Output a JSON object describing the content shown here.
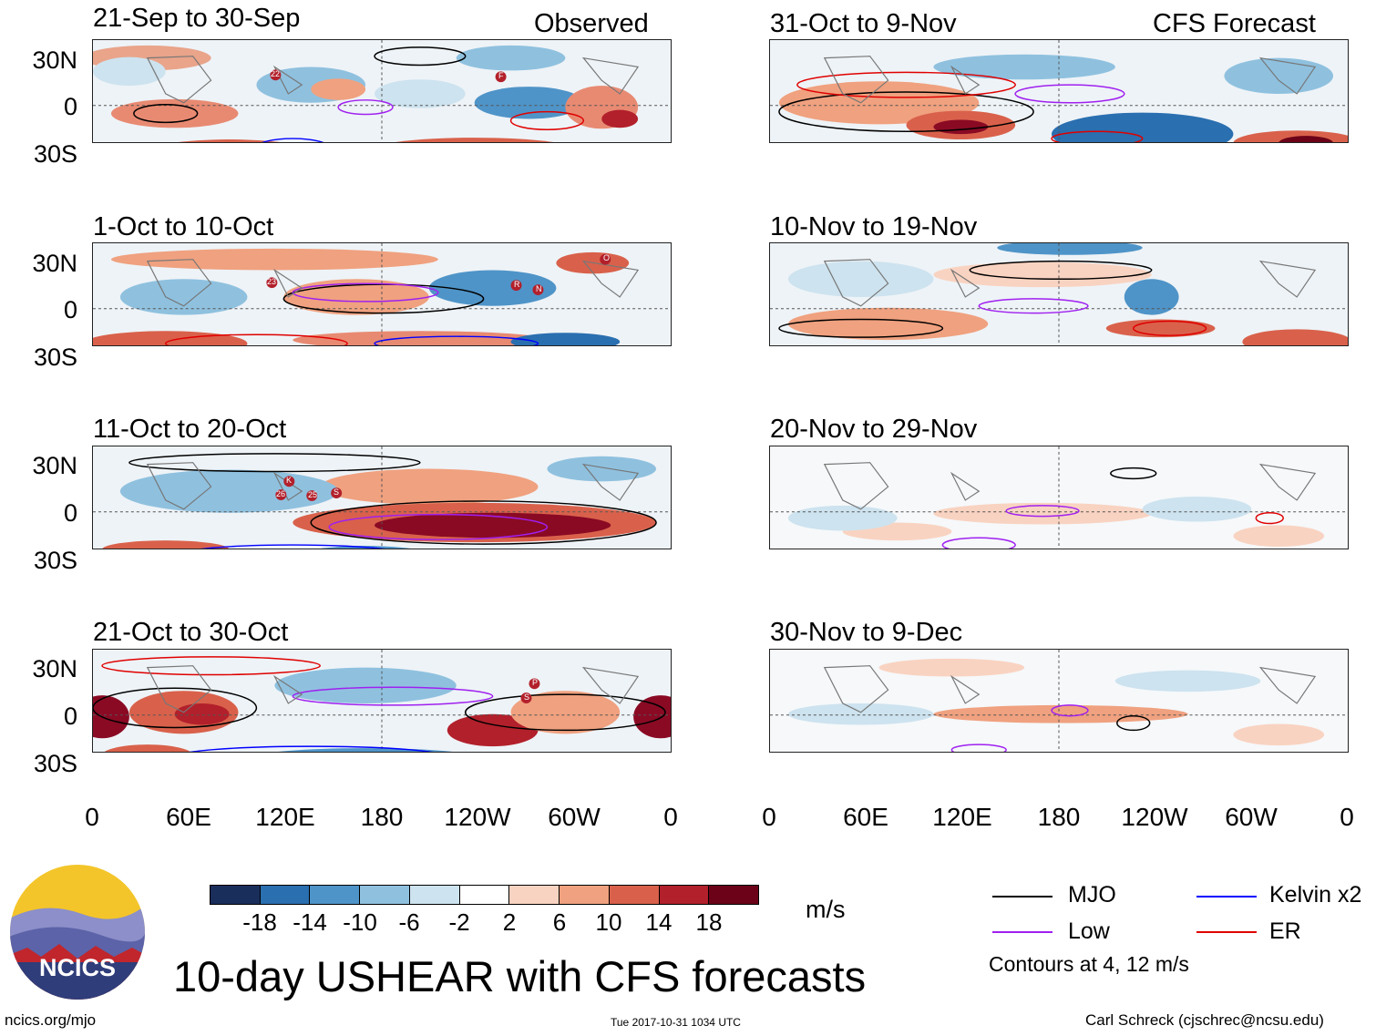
{
  "header": {
    "observed_tag": "Observed",
    "forecast_tag": "CFS Forecast"
  },
  "panels": {
    "observed": [
      {
        "title": "21-Sep to 30-Sep"
      },
      {
        "title": "1-Oct to 10-Oct"
      },
      {
        "title": "11-Oct to 20-Oct"
      },
      {
        "title": "21-Oct to 30-Oct"
      }
    ],
    "forecast": [
      {
        "title": "31-Oct to 9-Nov"
      },
      {
        "title": "10-Nov to 19-Nov"
      },
      {
        "title": "20-Nov to 29-Nov"
      },
      {
        "title": "30-Nov to 9-Dec"
      }
    ]
  },
  "axes": {
    "lat_labels": [
      "30N",
      "0",
      "30S"
    ],
    "lon_labels": [
      "0",
      "60E",
      "120E",
      "180",
      "120W",
      "60W",
      "0"
    ]
  },
  "storm_markers": {
    "p1": [
      "22",
      "F"
    ],
    "p2": [
      "23",
      "R",
      "N",
      "O"
    ],
    "p3": [
      "K",
      "26",
      "25",
      "S"
    ],
    "p4": [
      "P",
      "S"
    ]
  },
  "colorbar": {
    "labels": [
      "-18",
      "-14",
      "-10",
      "-6",
      "-2",
      "2",
      "6",
      "10",
      "14",
      "18"
    ],
    "colors": [
      "#1a2e5c",
      "#2a6fb0",
      "#4f94c8",
      "#8fc1df",
      "#cde3ef",
      "#ffffff",
      "#f9d3c1",
      "#f0a17f",
      "#d9614b",
      "#b2202b",
      "#6b0218"
    ],
    "units": "m/s"
  },
  "legend": {
    "mjo": "MJO",
    "low": "Low",
    "kelvin": "Kelvin x2",
    "er": "ER",
    "contours_note": "Contours at 4, 12 m/s",
    "colors": {
      "mjo": "#000000",
      "low": "#a020f0",
      "kelvin": "#0000ff",
      "er": "#e00000"
    }
  },
  "title": "10-day USHEAR with CFS forecasts",
  "logo_text": "NCICS",
  "footer": {
    "url": "ncics.org/mjo",
    "timestamp": "Tue 2017-10-31 1034 UTC",
    "author": "Carl Schreck (cjschrec@ncsu.edu)"
  }
}
